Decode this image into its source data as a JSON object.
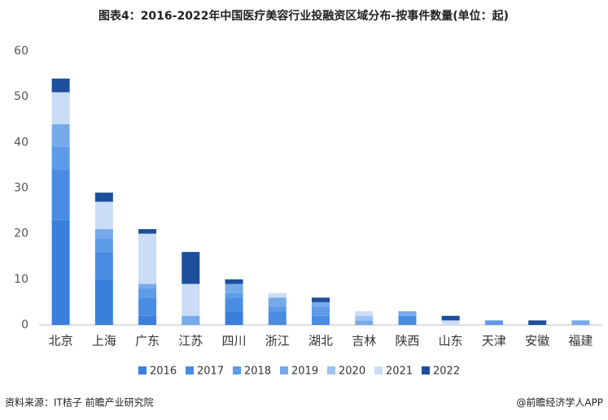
{
  "chart_data": {
    "type": "stacked_bar",
    "title": "图表4：2016-2022年中国医疗美容行业投融资区域分布-按事件数量(单位：起)",
    "categories": [
      "北京",
      "上海",
      "广东",
      "江苏",
      "四川",
      "浙江",
      "湖北",
      "吉林",
      "陕西",
      "山东",
      "天津",
      "安徽",
      "福建"
    ],
    "series": [
      {
        "name": "2016",
        "color": "#3a7fdc",
        "values": [
          23,
          10,
          2,
          0,
          3,
          0,
          0,
          0,
          0,
          0,
          0,
          0,
          0
        ]
      },
      {
        "name": "2017",
        "color": "#4a8ce2",
        "values": [
          11,
          6,
          4,
          0,
          3,
          3,
          2,
          0,
          2,
          0,
          0,
          0,
          0
        ]
      },
      {
        "name": "2018",
        "color": "#5e9be7",
        "values": [
          5,
          3,
          2,
          0,
          1,
          1,
          2,
          0,
          0,
          0,
          1,
          0,
          0
        ]
      },
      {
        "name": "2019",
        "color": "#76aaeb",
        "values": [
          5,
          2,
          1,
          2,
          2,
          2,
          1,
          1,
          1,
          0,
          0,
          0,
          1
        ]
      },
      {
        "name": "2020",
        "color": "#9cc3f1",
        "values": [
          0,
          0,
          0,
          0,
          0,
          0,
          0,
          1,
          0,
          0,
          0,
          0,
          0
        ]
      },
      {
        "name": "2021",
        "color": "#c9ddf6",
        "values": [
          7,
          6,
          11,
          7,
          0,
          1,
          0,
          1,
          0,
          1,
          0,
          0,
          0
        ]
      },
      {
        "name": "2022",
        "color": "#1d4f9c",
        "values": [
          3,
          2,
          1,
          7,
          1,
          0,
          1,
          0,
          0,
          1,
          0,
          1,
          0
        ]
      }
    ],
    "ylim": [
      0,
      60
    ],
    "yticks": [
      0,
      10,
      20,
      30,
      40,
      50,
      60
    ],
    "grid": false,
    "source": "资料来源：IT桔子 前瞻产业研究院",
    "brand": "@前瞻经济学人APP"
  }
}
